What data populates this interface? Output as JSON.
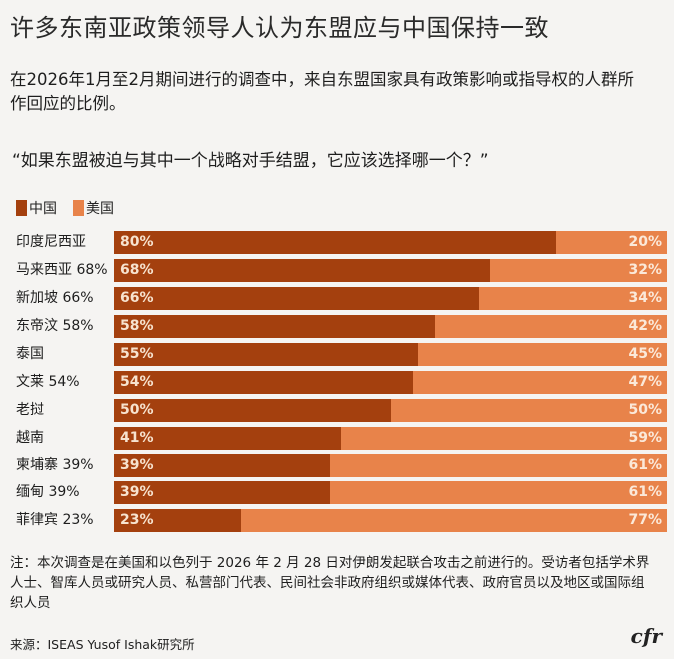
{
  "header": {
    "title": "许多东南亚政策领导人认为东盟应与中国保持一致",
    "subtitle": "在2026年1月至2月期间进行的调查中，来自东盟国家具有政策影响或指导权的人群所作回应的比例。",
    "question": "“如果东盟被迫与其中一个战略对手结盟，它应该选择哪一个？”"
  },
  "legend": [
    {
      "label": "中国",
      "color": "#a4400e"
    },
    {
      "label": "美国",
      "color": "#e8834a"
    }
  ],
  "chart_data": {
    "type": "bar",
    "orientation": "horizontal-stacked-100",
    "title": "许多东南亚政策领导人认为东盟应与中国保持一致",
    "subtitle": "在2026年1月至2月期间进行的调查中，来自东盟国家具有政策影响或指导权的人群所作回应的比例。",
    "question": "“如果东盟被迫与其中一个战略对手结盟，它应该选择哪一个？”",
    "categories": [
      "印度尼西亚",
      "马来西亚",
      "新加坡",
      "东帝汶",
      "泰国",
      "文莱",
      "老挝",
      "越南",
      "柬埔寨",
      "缅甸",
      "菲律宾"
    ],
    "category_labels": [
      "印度尼西亚",
      "马来西亚 68%",
      "新加坡 66%",
      "东帝汶 58%",
      "泰国",
      "文莱 54%",
      "老挝",
      "越南",
      "柬埔寨 39%",
      "缅甸 39%",
      "菲律宾 23%"
    ],
    "series": [
      {
        "name": "中国",
        "color": "#a4400e",
        "values": [
          80,
          68,
          66,
          58,
          55,
          54,
          50,
          41,
          39,
          39,
          23
        ]
      },
      {
        "name": "美国",
        "color": "#e8834a",
        "values": [
          20,
          32,
          34,
          42,
          45,
          47,
          50,
          59,
          61,
          61,
          77
        ]
      }
    ],
    "xlim": [
      0,
      100
    ],
    "xlabel": "",
    "ylabel": "",
    "grid": false,
    "legend_position": "top-left"
  },
  "rows": [
    {
      "label": "印度尼西亚",
      "cn": 80,
      "us": 20,
      "cn_text": "80%",
      "us_text": "20%"
    },
    {
      "label": "马来西亚 68%",
      "cn": 68,
      "us": 32,
      "cn_text": "68%",
      "us_text": "32%"
    },
    {
      "label": "新加坡 66%",
      "cn": 66,
      "us": 34,
      "cn_text": "66%",
      "us_text": "34%"
    },
    {
      "label": "东帝汶 58%",
      "cn": 58,
      "us": 42,
      "cn_text": "58%",
      "us_text": "42%"
    },
    {
      "label": "泰国",
      "cn": 55,
      "us": 45,
      "cn_text": "55%",
      "us_text": "45%"
    },
    {
      "label": "文莱 54%",
      "cn": 54,
      "us": 47,
      "cn_text": "54%",
      "us_text": "47%"
    },
    {
      "label": "老挝",
      "cn": 50,
      "us": 50,
      "cn_text": "50%",
      "us_text": "50%"
    },
    {
      "label": "越南",
      "cn": 41,
      "us": 59,
      "cn_text": "41%",
      "us_text": "59%"
    },
    {
      "label": "柬埔寨 39%",
      "cn": 39,
      "us": 61,
      "cn_text": "39%",
      "us_text": "61%"
    },
    {
      "label": "缅甸 39%",
      "cn": 39,
      "us": 61,
      "cn_text": "39%",
      "us_text": "61%"
    },
    {
      "label": "菲律宾 23%",
      "cn": 23,
      "us": 77,
      "cn_text": "23%",
      "us_text": "77%"
    }
  ],
  "footer": {
    "note": "注：本次调查是在美国和以色列于 2026 年 2 月 28 日对伊朗发起联合攻击之前进行的。受访者包括学术界人士、智库人员或研究人员、私营部门代表、民间社会非政府组织或媒体代表、政府官员以及地区或国际组织人员",
    "source": "来源：ISEAS Yusof Ishak研究所",
    "logo": "cfr"
  }
}
